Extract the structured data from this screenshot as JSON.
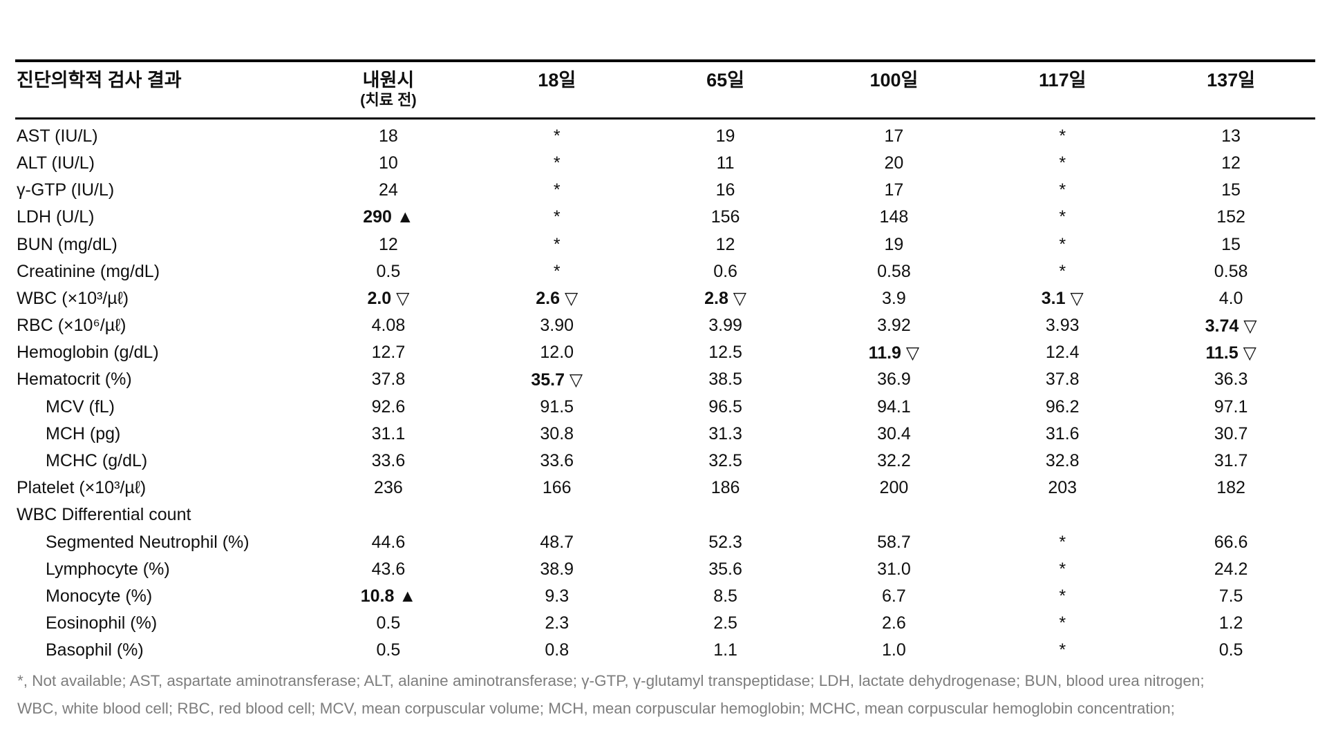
{
  "table": {
    "title_col_header": "진단의학적 검사 결과",
    "col_headers": [
      {
        "line1": "내원시",
        "line2": "(치료 전)"
      },
      {
        "line1": "18일"
      },
      {
        "line1": "65일"
      },
      {
        "line1": "100일"
      },
      {
        "line1": "117일"
      },
      {
        "line1": "137일"
      }
    ],
    "markers": {
      "high": "▲",
      "low": "▽",
      "not_available": "*"
    },
    "rows": [
      {
        "label": "AST (IU/L)",
        "indent": false,
        "values": [
          {
            "t": "18"
          },
          {
            "t": "*"
          },
          {
            "t": "19"
          },
          {
            "t": "17"
          },
          {
            "t": "*"
          },
          {
            "t": "13"
          }
        ]
      },
      {
        "label": "ALT (IU/L)",
        "indent": false,
        "values": [
          {
            "t": "10"
          },
          {
            "t": "*"
          },
          {
            "t": "11"
          },
          {
            "t": "20"
          },
          {
            "t": "*"
          },
          {
            "t": "12"
          }
        ]
      },
      {
        "label": "γ-GTP (IU/L)",
        "indent": false,
        "values": [
          {
            "t": "24"
          },
          {
            "t": "*"
          },
          {
            "t": "16"
          },
          {
            "t": "17"
          },
          {
            "t": "*"
          },
          {
            "t": "15"
          }
        ]
      },
      {
        "label": "LDH (U/L)",
        "indent": false,
        "values": [
          {
            "t": "290",
            "m": "▲",
            "b": true
          },
          {
            "t": "*"
          },
          {
            "t": "156"
          },
          {
            "t": "148"
          },
          {
            "t": "*"
          },
          {
            "t": "152"
          }
        ]
      },
      {
        "label": "BUN (mg/dL)",
        "indent": false,
        "values": [
          {
            "t": "12"
          },
          {
            "t": "*"
          },
          {
            "t": "12"
          },
          {
            "t": "19"
          },
          {
            "t": "*"
          },
          {
            "t": "15"
          }
        ]
      },
      {
        "label": "Creatinine (mg/dL)",
        "indent": false,
        "values": [
          {
            "t": "0.5"
          },
          {
            "t": "*"
          },
          {
            "t": "0.6"
          },
          {
            "t": "0.58"
          },
          {
            "t": "*"
          },
          {
            "t": "0.58"
          }
        ]
      },
      {
        "label": "WBC (×10³/µℓ)",
        "indent": false,
        "values": [
          {
            "t": "2.0",
            "m": "▽",
            "b": true
          },
          {
            "t": "2.6",
            "m": "▽",
            "b": true
          },
          {
            "t": "2.8",
            "m": "▽",
            "b": true
          },
          {
            "t": "3.9"
          },
          {
            "t": "3.1",
            "m": "▽",
            "b": true
          },
          {
            "t": "4.0"
          }
        ]
      },
      {
        "label": "RBC (×10⁶/µℓ)",
        "indent": false,
        "values": [
          {
            "t": "4.08"
          },
          {
            "t": "3.90"
          },
          {
            "t": "3.99"
          },
          {
            "t": "3.92"
          },
          {
            "t": "3.93"
          },
          {
            "t": "3.74",
            "m": "▽",
            "b": true
          }
        ]
      },
      {
        "label": "Hemoglobin (g/dL)",
        "indent": false,
        "values": [
          {
            "t": "12.7"
          },
          {
            "t": "12.0"
          },
          {
            "t": "12.5"
          },
          {
            "t": "11.9",
            "m": "▽",
            "b": true
          },
          {
            "t": "12.4"
          },
          {
            "t": "11.5",
            "m": "▽",
            "b": true
          }
        ]
      },
      {
        "label": "Hematocrit (%)",
        "indent": false,
        "values": [
          {
            "t": "37.8"
          },
          {
            "t": "35.7",
            "m": "▽",
            "b": true
          },
          {
            "t": "38.5"
          },
          {
            "t": "36.9"
          },
          {
            "t": "37.8"
          },
          {
            "t": "36.3"
          }
        ]
      },
      {
        "label": "MCV (fL)",
        "indent": true,
        "values": [
          {
            "t": "92.6"
          },
          {
            "t": "91.5"
          },
          {
            "t": "96.5"
          },
          {
            "t": "94.1"
          },
          {
            "t": "96.2"
          },
          {
            "t": "97.1"
          }
        ]
      },
      {
        "label": "MCH (pg)",
        "indent": true,
        "values": [
          {
            "t": "31.1"
          },
          {
            "t": "30.8"
          },
          {
            "t": "31.3"
          },
          {
            "t": "30.4"
          },
          {
            "t": "31.6"
          },
          {
            "t": "30.7"
          }
        ]
      },
      {
        "label": "MCHC (g/dL)",
        "indent": true,
        "values": [
          {
            "t": "33.6"
          },
          {
            "t": "33.6"
          },
          {
            "t": "32.5"
          },
          {
            "t": "32.2"
          },
          {
            "t": "32.8"
          },
          {
            "t": "31.7"
          }
        ]
      },
      {
        "label": "Platelet (×10³/µℓ)",
        "indent": false,
        "values": [
          {
            "t": "236"
          },
          {
            "t": "166"
          },
          {
            "t": "186"
          },
          {
            "t": "200"
          },
          {
            "t": "203"
          },
          {
            "t": "182"
          }
        ]
      },
      {
        "label": "WBC Differential count",
        "indent": false,
        "values": [
          null,
          null,
          null,
          null,
          null,
          null
        ]
      },
      {
        "label": "Segmented Neutrophil (%)",
        "indent": true,
        "values": [
          {
            "t": "44.6"
          },
          {
            "t": "48.7"
          },
          {
            "t": "52.3"
          },
          {
            "t": "58.7"
          },
          {
            "t": "*"
          },
          {
            "t": "66.6"
          }
        ]
      },
      {
        "label": "Lymphocyte (%)",
        "indent": true,
        "values": [
          {
            "t": "43.6"
          },
          {
            "t": "38.9"
          },
          {
            "t": "35.6"
          },
          {
            "t": "31.0"
          },
          {
            "t": "*"
          },
          {
            "t": "24.2"
          }
        ]
      },
      {
        "label": "Monocyte (%)",
        "indent": true,
        "values": [
          {
            "t": "10.8",
            "m": "▲",
            "b": true
          },
          {
            "t": "9.3"
          },
          {
            "t": "8.5"
          },
          {
            "t": "6.7"
          },
          {
            "t": "*"
          },
          {
            "t": "7.5"
          }
        ]
      },
      {
        "label": "Eosinophil (%)",
        "indent": true,
        "values": [
          {
            "t": "0.5"
          },
          {
            "t": "2.3"
          },
          {
            "t": "2.5"
          },
          {
            "t": "2.6"
          },
          {
            "t": "*"
          },
          {
            "t": "1.2"
          }
        ]
      },
      {
        "label": "Basophil (%)",
        "indent": true,
        "values": [
          {
            "t": "0.5"
          },
          {
            "t": "0.8"
          },
          {
            "t": "1.1"
          },
          {
            "t": "1.0"
          },
          {
            "t": "*"
          },
          {
            "t": "0.5"
          }
        ]
      }
    ],
    "footnote_line1": "*, Not available; AST, aspartate aminotransferase; ALT, alanine aminotransferase; γ-GTP, γ-glutamyl transpeptidase; LDH, lactate dehydrogenase; BUN, blood urea nitrogen;",
    "footnote_line2": "WBC, white blood cell; RBC, red blood cell; MCV, mean corpuscular volume; MCH, mean corpuscular hemoglobin; MCHC, mean corpuscular hemoglobin concentration;"
  }
}
